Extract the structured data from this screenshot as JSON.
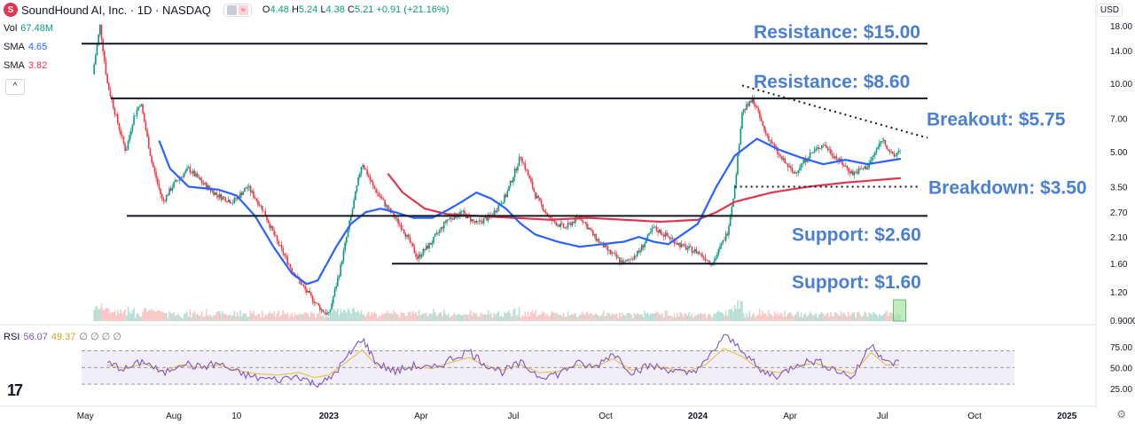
{
  "header": {
    "logo_letter": "S",
    "symbol_line": "SoundHound AI, Inc. · 1D · NASDAQ",
    "ohlc": {
      "o_label": "O",
      "o": "4.48",
      "h_label": "H",
      "h": "5.24",
      "l_label": "L",
      "l": "4.38",
      "c_label": "C",
      "c": "5.21",
      "change": "+0.91 (+21.16%)"
    }
  },
  "indicators": {
    "vol": {
      "label": "Vol",
      "value": "67.48M"
    },
    "sma1": {
      "label": "SMA",
      "value": "4.65"
    },
    "sma2": {
      "label": "SMA",
      "value": "3.82"
    },
    "rsi": {
      "label": "RSI",
      "value": "56.07",
      "value2": "49.37",
      "extra": "∅ ∅ ∅ ∅"
    },
    "collapse_icon": "^"
  },
  "currency": "USD",
  "colors": {
    "sma50": "#2962ff",
    "sma200": "#e0364f",
    "up": "#089981",
    "down": "#f23645",
    "annotation": "#4a7fd1",
    "rsi_line": "#7e57c2",
    "rsi_ma": "#e6c44c"
  },
  "chart_data": {
    "type": "candlestick",
    "scale": "log",
    "price_ticks": [
      "18.00",
      "14.00",
      "10.00",
      "7.00",
      "5.00",
      "3.50",
      "2.70",
      "2.10",
      "1.60",
      "1.20",
      "0.9000"
    ],
    "rsi_ticks": [
      "75.00",
      "50.00",
      "25.00"
    ],
    "x_ticks": [
      "May",
      "Aug",
      "10",
      "2023",
      "Apr",
      "Jul",
      "Oct",
      "2024",
      "Apr",
      "Jul",
      "Oct",
      "2025"
    ],
    "levels": [
      {
        "label": "Resistance: $15.00",
        "value": 15.0
      },
      {
        "label": "Resistance: $8.60",
        "value": 8.6
      },
      {
        "label": "Breakout: $5.75",
        "value": 5.75
      },
      {
        "label": "Breakdown: $3.50",
        "value": 3.5
      },
      {
        "label": "Support: $2.60",
        "value": 2.6
      },
      {
        "label": "Support: $1.60",
        "value": 1.6
      }
    ],
    "price_path": [
      [
        2022.36,
        11.0
      ],
      [
        2022.38,
        18.0
      ],
      [
        2022.4,
        10.0
      ],
      [
        2022.43,
        6.5
      ],
      [
        2022.45,
        5.0
      ],
      [
        2022.47,
        7.0
      ],
      [
        2022.49,
        8.3
      ],
      [
        2022.52,
        4.5
      ],
      [
        2022.55,
        3.0
      ],
      [
        2022.58,
        3.6
      ],
      [
        2022.62,
        4.2
      ],
      [
        2022.66,
        3.6
      ],
      [
        2022.7,
        3.2
      ],
      [
        2022.74,
        3.0
      ],
      [
        2022.78,
        3.5
      ],
      [
        2022.82,
        2.8
      ],
      [
        2022.86,
        2.0
      ],
      [
        2022.9,
        1.5
      ],
      [
        2022.94,
        1.2
      ],
      [
        2022.98,
        1.0
      ],
      [
        2023.0,
        0.95
      ],
      [
        2023.03,
        1.5
      ],
      [
        2023.06,
        2.6
      ],
      [
        2023.09,
        4.5
      ],
      [
        2023.12,
        3.5
      ],
      [
        2023.16,
        2.8
      ],
      [
        2023.2,
        2.3
      ],
      [
        2023.24,
        1.7
      ],
      [
        2023.28,
        2.0
      ],
      [
        2023.32,
        2.5
      ],
      [
        2023.36,
        2.7
      ],
      [
        2023.4,
        2.4
      ],
      [
        2023.44,
        2.6
      ],
      [
        2023.48,
        3.2
      ],
      [
        2023.52,
        4.8
      ],
      [
        2023.56,
        3.2
      ],
      [
        2023.6,
        2.5
      ],
      [
        2023.64,
        2.3
      ],
      [
        2023.68,
        2.6
      ],
      [
        2023.72,
        2.1
      ],
      [
        2023.76,
        1.8
      ],
      [
        2023.8,
        1.6
      ],
      [
        2023.84,
        1.8
      ],
      [
        2023.88,
        2.3
      ],
      [
        2023.92,
        2.1
      ],
      [
        2023.96,
        1.9
      ],
      [
        2024.0,
        1.8
      ],
      [
        2024.04,
        1.6
      ],
      [
        2024.08,
        2.2
      ],
      [
        2024.1,
        3.5
      ],
      [
        2024.12,
        7.5
      ],
      [
        2024.15,
        8.5
      ],
      [
        2024.18,
        6.2
      ],
      [
        2024.22,
        4.8
      ],
      [
        2024.26,
        4.0
      ],
      [
        2024.3,
        4.8
      ],
      [
        2024.34,
        5.4
      ],
      [
        2024.38,
        4.6
      ],
      [
        2024.42,
        4.0
      ],
      [
        2024.46,
        4.3
      ],
      [
        2024.5,
        5.7
      ],
      [
        2024.53,
        4.7
      ],
      [
        2024.55,
        5.21
      ]
    ],
    "sma50_path": [
      [
        2022.54,
        5.6
      ],
      [
        2022.57,
        4.2
      ],
      [
        2022.62,
        3.5
      ],
      [
        2022.7,
        3.4
      ],
      [
        2022.75,
        3.2
      ],
      [
        2022.8,
        2.6
      ],
      [
        2022.85,
        1.9
      ],
      [
        2022.9,
        1.45
      ],
      [
        2022.94,
        1.3
      ],
      [
        2022.97,
        1.35
      ],
      [
        2023.02,
        1.9
      ],
      [
        2023.06,
        2.4
      ],
      [
        2023.1,
        2.7
      ],
      [
        2023.14,
        2.8
      ],
      [
        2023.18,
        2.7
      ],
      [
        2023.23,
        2.55
      ],
      [
        2023.28,
        2.55
      ],
      [
        2023.32,
        2.75
      ],
      [
        2023.36,
        3.0
      ],
      [
        2023.4,
        3.3
      ],
      [
        2023.44,
        3.1
      ],
      [
        2023.48,
        2.8
      ],
      [
        2023.52,
        2.4
      ],
      [
        2023.56,
        2.15
      ],
      [
        2023.62,
        2.0
      ],
      [
        2023.68,
        1.9
      ],
      [
        2023.74,
        1.95
      ],
      [
        2023.8,
        2.0
      ],
      [
        2023.84,
        2.1
      ],
      [
        2023.88,
        2.0
      ],
      [
        2023.92,
        1.95
      ],
      [
        2024.0,
        2.4
      ],
      [
        2024.05,
        3.5
      ],
      [
        2024.1,
        4.8
      ],
      [
        2024.16,
        5.7
      ],
      [
        2024.22,
        5.1
      ],
      [
        2024.28,
        4.7
      ],
      [
        2024.34,
        4.4
      ],
      [
        2024.4,
        4.6
      ],
      [
        2024.46,
        4.4
      ],
      [
        2024.55,
        4.65
      ]
    ],
    "sma200_path": [
      [
        2023.16,
        4.0
      ],
      [
        2023.2,
        3.3
      ],
      [
        2023.26,
        2.8
      ],
      [
        2023.32,
        2.65
      ],
      [
        2023.4,
        2.6
      ],
      [
        2023.5,
        2.55
      ],
      [
        2023.6,
        2.5
      ],
      [
        2023.7,
        2.55
      ],
      [
        2023.8,
        2.5
      ],
      [
        2023.9,
        2.45
      ],
      [
        2024.0,
        2.5
      ],
      [
        2024.05,
        2.7
      ],
      [
        2024.1,
        3.0
      ],
      [
        2024.2,
        3.3
      ],
      [
        2024.3,
        3.5
      ],
      [
        2024.4,
        3.65
      ],
      [
        2024.55,
        3.82
      ]
    ],
    "rsi_path": [
      [
        2022.4,
        55
      ],
      [
        2022.45,
        48
      ],
      [
        2022.5,
        58
      ],
      [
        2022.55,
        42
      ],
      [
        2022.6,
        56
      ],
      [
        2022.65,
        50
      ],
      [
        2022.7,
        55
      ],
      [
        2022.75,
        44
      ],
      [
        2022.8,
        38
      ],
      [
        2022.86,
        35
      ],
      [
        2022.92,
        40
      ],
      [
        2022.96,
        30
      ],
      [
        2023.0,
        35
      ],
      [
        2023.05,
        62
      ],
      [
        2023.09,
        85
      ],
      [
        2023.13,
        55
      ],
      [
        2023.18,
        45
      ],
      [
        2023.23,
        52
      ],
      [
        2023.28,
        48
      ],
      [
        2023.33,
        60
      ],
      [
        2023.38,
        70
      ],
      [
        2023.42,
        55
      ],
      [
        2023.47,
        45
      ],
      [
        2023.52,
        55
      ],
      [
        2023.57,
        40
      ],
      [
        2023.62,
        42
      ],
      [
        2023.67,
        55
      ],
      [
        2023.72,
        50
      ],
      [
        2023.77,
        68
      ],
      [
        2023.82,
        45
      ],
      [
        2023.87,
        52
      ],
      [
        2023.92,
        48
      ],
      [
        2023.97,
        42
      ],
      [
        2024.02,
        55
      ],
      [
        2024.07,
        88
      ],
      [
        2024.12,
        72
      ],
      [
        2024.17,
        45
      ],
      [
        2024.22,
        40
      ],
      [
        2024.27,
        55
      ],
      [
        2024.32,
        58
      ],
      [
        2024.37,
        48
      ],
      [
        2024.42,
        38
      ],
      [
        2024.47,
        80
      ],
      [
        2024.51,
        55
      ],
      [
        2024.55,
        56
      ]
    ]
  }
}
